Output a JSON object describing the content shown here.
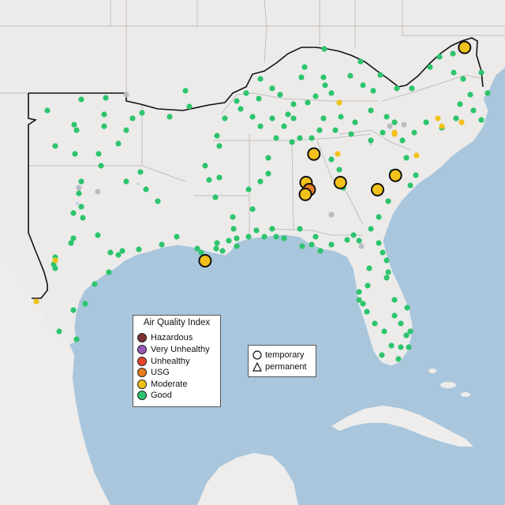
{
  "colors": {
    "water": "#a9c6dc",
    "land": "#ecebea",
    "land_light": "#f4f3f2",
    "border": "#bdb9b6",
    "region_outline": "#111111"
  },
  "legend": {
    "title": "Air Quality Index",
    "categories": [
      {
        "label": "Hazardous",
        "color": "#7e3131"
      },
      {
        "label": "Very Unhealthy",
        "color": "#9a58b8"
      },
      {
        "label": "Unhealthy",
        "color": "#e5432d"
      },
      {
        "label": "USG",
        "color": "#ea7e22"
      },
      {
        "label": "Moderate",
        "color": "#f2c21b"
      },
      {
        "label": "Good",
        "color": "#2dc46d"
      }
    ]
  },
  "type_legend": {
    "temporary": "temporary",
    "permanent": "permanent"
  },
  "monitors_large": [
    {
      "lon": -76.6,
      "lat": 39.3,
      "aqi": "Moderate"
    },
    {
      "lon": -86.3,
      "lat": 34.8,
      "aqi": "Moderate"
    },
    {
      "lon": -86.8,
      "lat": 33.6,
      "aqi": "Moderate"
    },
    {
      "lon": -86.6,
      "lat": 33.3,
      "aqi": "USG"
    },
    {
      "lon": -86.85,
      "lat": 33.1,
      "aqi": "Moderate"
    },
    {
      "lon": -84.6,
      "lat": 33.6,
      "aqi": "Moderate"
    },
    {
      "lon": -81.05,
      "lat": 33.9,
      "aqi": "Moderate"
    },
    {
      "lon": -82.2,
      "lat": 33.3,
      "aqi": "Moderate"
    },
    {
      "lon": -93.3,
      "lat": 30.3,
      "aqi": "Moderate"
    }
  ]
}
